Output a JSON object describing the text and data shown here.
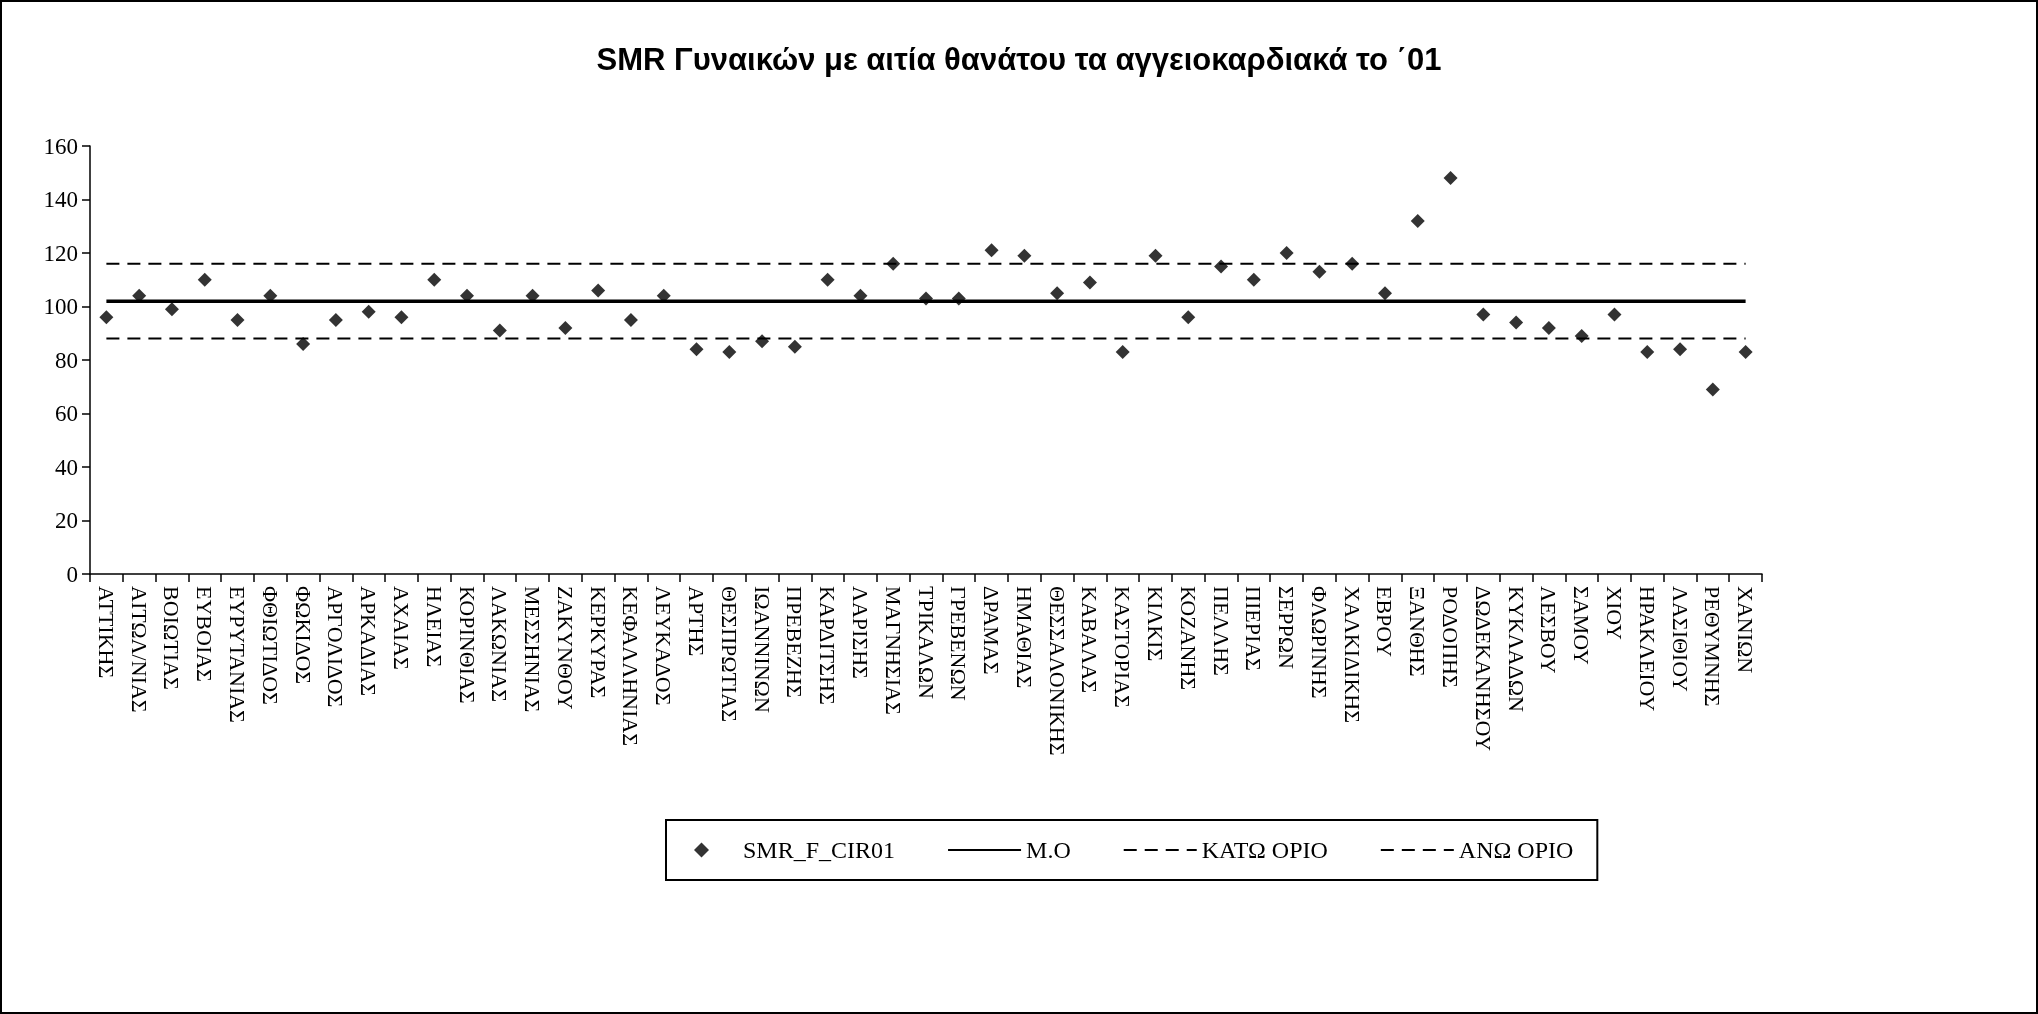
{
  "chart_data": {
    "type": "scatter",
    "title": "SMR Γυναικών με αιτία θανάτου τα αγγειοκαρδιακά το ΄01",
    "categories": [
      "ΑΤΤΙΚΗΣ",
      "ΑΙΤΩΛ/ΝΙΑΣ",
      "ΒΟΙΩΤΙΑΣ",
      "ΕΥΒΟΙΑΣ",
      "ΕΥΡΥΤΑΝΙΑΣ",
      "ΦΘΙΩΤΙΔΟΣ",
      "ΦΩΚΙΔΟΣ",
      "ΑΡΓΟΛΙΔΟΣ",
      "ΑΡΚΑΔΙΑΣ",
      "ΑΧΑΙΑΣ",
      "ΗΛΕΙΑΣ",
      "ΚΟΡΙΝΘΙΑΣ",
      "ΛΑΚΩΝΙΑΣ",
      "ΜΕΣΣΗΝΙΑΣ",
      "ΖΑΚΥΝΘΟΥ",
      "ΚΕΡΚΥΡΑΣ",
      "ΚΕΦΑΛΛΗΝΙΑΣ",
      "ΛΕΥΚΑΔΟΣ",
      "ΑΡΤΗΣ",
      "ΘΕΣΠΡΩΤΙΑΣ",
      "ΙΩΑΝΝΙΝΩΝ",
      "ΠΡΕΒΕΖΗΣ",
      "ΚΑΡΔΙΤΣΗΣ",
      "ΛΑΡΙΣΗΣ",
      "ΜΑΓΝΗΣΙΑΣ",
      "ΤΡΙΚΑΛΩΝ",
      "ΓΡΕΒΕΝΩΝ",
      "ΔΡΑΜΑΣ",
      "ΗΜΑΘΙΑΣ",
      "ΘΕΣΣΑΛΟΝΙΚΗΣ",
      "ΚΑΒΑΛΑΣ",
      "ΚΑΣΤΟΡΙΑΣ",
      "ΚΙΛΚΙΣ",
      "ΚΟΖΑΝΗΣ",
      "ΠΕΛΛΗΣ",
      "ΠΙΕΡΙΑΣ",
      "ΣΕΡΡΩΝ",
      "ΦΛΩΡΙΝΗΣ",
      "ΧΑΛΚΙΔΙΚΗΣ",
      "ΕΒΡΟΥ",
      "ΞΑΝΘΗΣ",
      "ΡΟΔΟΠΗΣ",
      "ΔΩΔΕΚΑΝΗΣΟΥ",
      "ΚΥΚΛΑΔΩΝ",
      "ΛΕΣΒΟΥ",
      "ΣΑΜΟΥ",
      "ΧΙΟΥ",
      "ΗΡΑΚΛΕΙΟΥ",
      "ΛΑΣΙΘΙΟΥ",
      "ΡΕΘΥΜΝΗΣ",
      "ΧΑΝΙΩΝ"
    ],
    "series": [
      {
        "name": "SMR_F_CIR01",
        "color": "#000000",
        "values": [
          96,
          104,
          99,
          110,
          95,
          104,
          86,
          95,
          98,
          96,
          110,
          104,
          91,
          104,
          92,
          106,
          95,
          104,
          84,
          83,
          87,
          85,
          110,
          104,
          116,
          103,
          103,
          121,
          119,
          105,
          109,
          83,
          119,
          96,
          115,
          110,
          120,
          113,
          116,
          105,
          132,
          148,
          97,
          94,
          92,
          89,
          97,
          83,
          84,
          69,
          83
        ]
      },
      {
        "name": "M.O",
        "type": "line",
        "color": "#000000",
        "marker": "none",
        "line_style": "solid",
        "values": [
          102,
          102,
          102,
          102,
          102,
          102,
          102,
          102,
          102,
          102,
          102,
          102,
          102,
          102,
          102,
          102,
          102,
          102,
          102,
          102,
          102,
          102,
          102,
          102,
          102,
          102,
          102,
          102,
          102,
          102,
          102,
          102,
          102,
          102,
          102,
          102,
          102,
          102,
          102,
          102,
          102,
          102,
          102,
          102,
          102,
          102,
          102,
          102,
          102,
          102,
          102
        ]
      },
      {
        "name": "ΚΑΤΩ ΟΡΙΟ",
        "type": "line",
        "color": "#000000",
        "marker": "none",
        "line_style": "dashed",
        "values": [
          88,
          88,
          88,
          88,
          88,
          88,
          88,
          88,
          88,
          88,
          88,
          88,
          88,
          88,
          88,
          88,
          88,
          88,
          88,
          88,
          88,
          88,
          88,
          88,
          88,
          88,
          88,
          88,
          88,
          88,
          88,
          88,
          88,
          88,
          88,
          88,
          88,
          88,
          88,
          88,
          88,
          88,
          88,
          88,
          88,
          88,
          88,
          88,
          88,
          88,
          88
        ]
      },
      {
        "name": "ΑΝΩ ΟΡΙΟ",
        "type": "line",
        "color": "#000000",
        "marker": "none",
        "line_style": "dashed",
        "values": [
          116,
          116,
          116,
          116,
          116,
          116,
          116,
          116,
          116,
          116,
          116,
          116,
          116,
          116,
          116,
          116,
          116,
          116,
          116,
          116,
          116,
          116,
          116,
          116,
          116,
          116,
          116,
          116,
          116,
          116,
          116,
          116,
          116,
          116,
          116,
          116,
          116,
          116,
          116,
          116,
          116,
          116,
          116,
          116,
          116,
          116,
          116,
          116,
          116,
          116,
          116
        ]
      }
    ],
    "ylim": [
      0,
      160
    ],
    "yticks": [
      0,
      20,
      40,
      60,
      80,
      100,
      120,
      140,
      160
    ],
    "grid": false,
    "legend": "bottom",
    "marker": "diamond"
  }
}
